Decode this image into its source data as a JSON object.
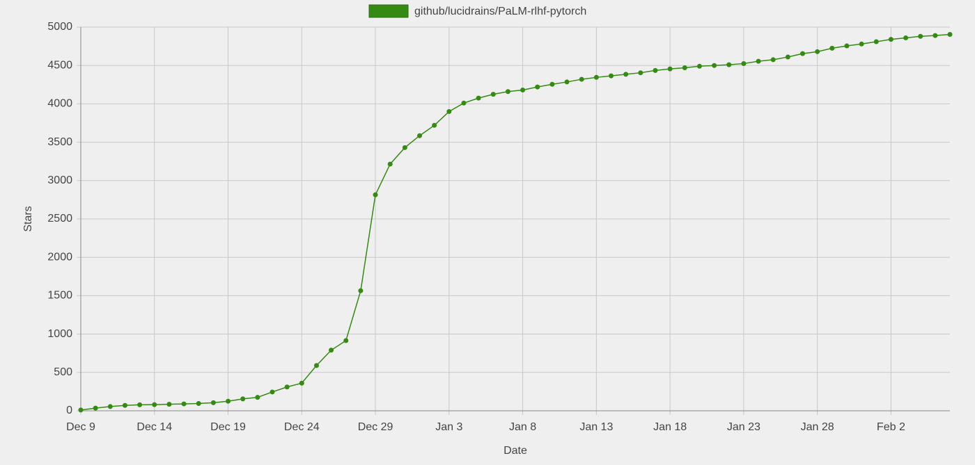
{
  "chart_data": {
    "type": "line",
    "legend_position": "top",
    "x_label": "Date",
    "y_label": "Stars",
    "categories": [
      "Dec 9",
      null,
      null,
      null,
      null,
      "Dec 14",
      null,
      null,
      null,
      null,
      "Dec 19",
      null,
      null,
      null,
      null,
      "Dec 24",
      null,
      null,
      null,
      null,
      "Dec 29",
      null,
      null,
      null,
      null,
      "Jan 3",
      null,
      null,
      null,
      null,
      "Jan 8",
      null,
      null,
      null,
      null,
      "Jan 13",
      null,
      null,
      null,
      null,
      "Jan 18",
      null,
      null,
      null,
      null,
      "Jan 23",
      null,
      null,
      null,
      null,
      "Jan 28",
      null,
      null,
      null,
      null,
      "Feb 2",
      null,
      null,
      null,
      null
    ],
    "series": [
      {
        "name": "github/lucidrains/PaLM-rlhf-pytorch",
        "color": "#348a12",
        "values": [
          10,
          35,
          55,
          70,
          78,
          80,
          85,
          90,
          95,
          105,
          125,
          155,
          175,
          245,
          310,
          360,
          590,
          790,
          915,
          1565,
          2815,
          3215,
          3430,
          3585,
          3720,
          3900,
          4010,
          4075,
          4125,
          4160,
          4180,
          4220,
          4255,
          4285,
          4320,
          4345,
          4365,
          4385,
          4405,
          4435,
          4455,
          4470,
          4490,
          4500,
          4510,
          4525,
          4555,
          4575,
          4610,
          4655,
          4680,
          4725,
          4755,
          4780,
          4810,
          4840,
          4860,
          4880,
          4890,
          4905
        ]
      }
    ],
    "ylim": [
      0,
      5000
    ],
    "yticks": [
      0,
      500,
      1000,
      1500,
      2000,
      2500,
      3000,
      3500,
      4000,
      4500,
      5000
    ],
    "grid": true
  }
}
